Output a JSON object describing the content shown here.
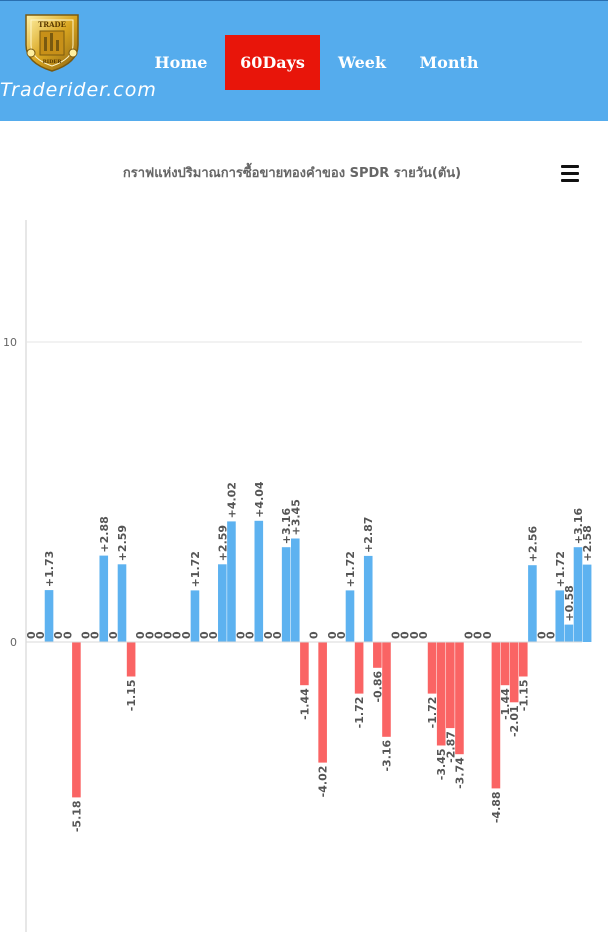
{
  "header": {
    "brand": "Traderider.com",
    "logo_text_top": "TRADE",
    "logo_text_bottom": "RIDER",
    "nav": [
      {
        "label": "Home",
        "active": false
      },
      {
        "label": "60Days",
        "active": true
      },
      {
        "label": "Week",
        "active": false
      },
      {
        "label": "Month",
        "active": false
      }
    ]
  },
  "colors": {
    "header_bg": "#55aced",
    "active_tab": "#e8150a",
    "positive_bar": "#5db2f0",
    "negative_bar": "#fa6464"
  },
  "chart_data": {
    "type": "bar",
    "title": "กราฟแห่งปริมาณการซื้อขายทองคำของ SPDR รายวัน(ตัน)",
    "y_ticks": [
      0,
      10
    ],
    "ylim": [
      -9.5,
      14
    ],
    "grid": true,
    "values": [
      0,
      0,
      1.73,
      0,
      0,
      -5.18,
      0,
      0,
      2.88,
      0,
      2.59,
      -1.15,
      0,
      0,
      0,
      0,
      0,
      0,
      1.72,
      0,
      0,
      2.59,
      4.02,
      0,
      0,
      4.04,
      0,
      0,
      3.16,
      3.45,
      -1.44,
      0,
      -4.02,
      0,
      0,
      1.72,
      -1.72,
      2.87,
      -0.86,
      -3.16,
      0,
      0,
      0,
      0,
      -1.72,
      -3.45,
      -2.87,
      -3.74,
      0,
      0,
      0,
      -4.88,
      -1.44,
      -2.01,
      -1.15,
      2.56,
      0,
      0,
      1.72,
      0.58,
      3.16,
      2.58
    ],
    "labels": [
      "0",
      "0",
      "+1.73",
      "0",
      "0",
      "-5.18",
      "0",
      "0",
      "+2.88",
      "0",
      "+2.59",
      "-1.15",
      "0",
      "0",
      "0",
      "0",
      "0",
      "0",
      "+1.72",
      "0",
      "0",
      "+2.59",
      "+4.02",
      "0",
      "0",
      "+4.04",
      "0",
      "0",
      "+3.16",
      "+3.45",
      "-1.44",
      "0",
      "-4.02",
      "0",
      "0",
      "+1.72",
      "-1.72",
      "+2.87",
      "-0.86",
      "-3.16",
      "0",
      "0",
      "0",
      "0",
      "-1.72",
      "-3.45",
      "-2.87",
      "-3.74",
      "0",
      "0",
      "0",
      "-4.88",
      "-1.44",
      "-2.01",
      "-1.15",
      "+2.56",
      "0",
      "0",
      "+1.72",
      "+0.58",
      "+3.16",
      "+2.58"
    ]
  }
}
